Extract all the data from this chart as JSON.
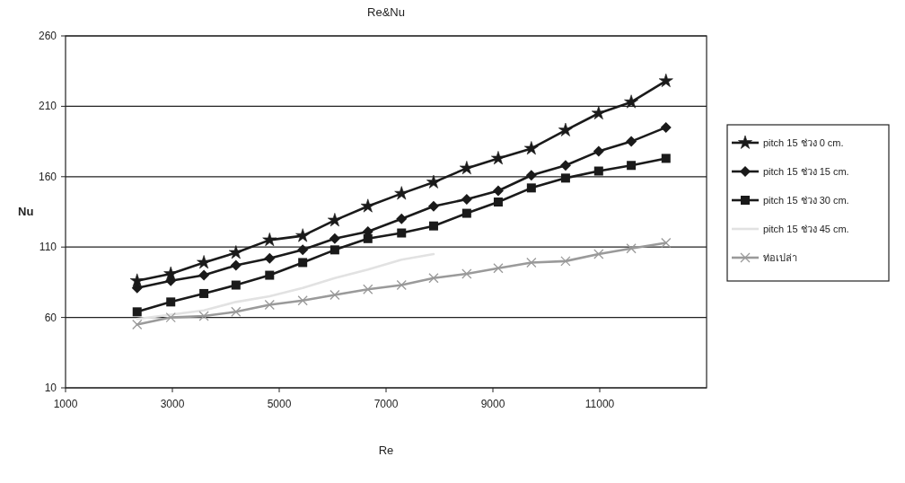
{
  "chart_data": {
    "type": "line",
    "title": "Re&Nu",
    "xlabel": "Re",
    "ylabel": "Nu",
    "xlim": [
      1000,
      13000
    ],
    "xticks": [
      1000,
      3000,
      5000,
      7000,
      9000,
      11000
    ],
    "ylim": [
      10,
      260
    ],
    "yticks": [
      10,
      60,
      110,
      160,
      210,
      260
    ],
    "grid": "y",
    "legend": "right",
    "x": [
      2340,
      2970,
      3590,
      4190,
      4820,
      5440,
      6040,
      6660,
      7290,
      7890,
      8510,
      9100,
      9720,
      10360,
      10980,
      11590,
      12240
    ],
    "series": [
      {
        "name": "pitch 15 ช่วง 0 cm.",
        "color": "#1a1a1a",
        "marker": "star",
        "values": [
          86,
          91,
          99,
          106,
          115,
          118,
          129,
          139,
          148,
          156,
          166,
          173,
          180,
          193,
          205,
          213,
          228
        ]
      },
      {
        "name": "pitch 15 ช่วง 15 cm.",
        "color": "#1a1a1a",
        "marker": "diamond",
        "values": [
          81,
          86,
          90,
          97,
          102,
          108,
          116,
          121,
          130,
          139,
          144,
          150,
          161,
          168,
          178,
          185,
          195
        ]
      },
      {
        "name": "pitch 15 ช่วง 30 cm.",
        "color": "#1a1a1a",
        "marker": "square",
        "values": [
          64,
          71,
          77,
          83,
          90,
          99,
          108,
          116,
          120,
          125,
          134,
          142,
          152,
          159,
          164,
          168,
          173
        ]
      },
      {
        "name": "pitch 15 ช่วง 45 cm.",
        "color": "#e2e2e2",
        "marker": "none",
        "values": [
          59,
          62,
          65,
          71,
          75,
          81,
          88,
          94,
          101,
          105,
          null,
          null,
          null,
          null,
          null,
          null,
          null
        ]
      },
      {
        "name": "ท่อเปล่า",
        "color": "#9a9a9a",
        "marker": "cross",
        "values": [
          55,
          60,
          61,
          64,
          69,
          72,
          76,
          80,
          83,
          88,
          91,
          95,
          99,
          100,
          105,
          109,
          113
        ]
      }
    ]
  }
}
